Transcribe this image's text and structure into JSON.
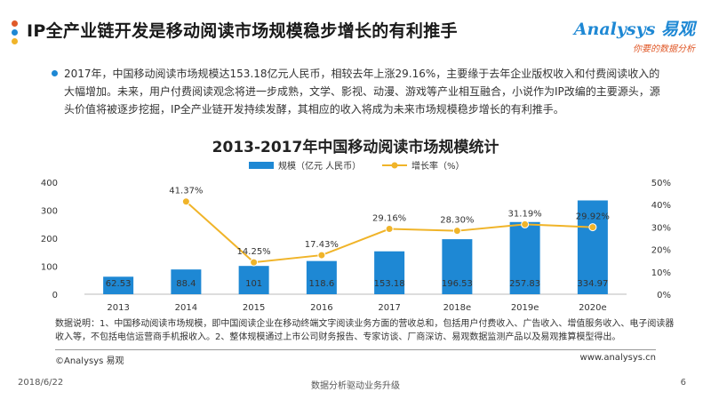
{
  "header": {
    "title": "IP全产业链开发是移动阅读市场规模稳步增长的有利推手",
    "logo_brand": "Analysys 易观",
    "logo_tagline": "你要的数据分析"
  },
  "paragraph": "2017年，中国移动阅读市场规模达153.18亿元人民币，相较去年上涨29.16%，主要缘于去年企业版权收入和付费阅读收入的大幅增加。未来，用户付费阅读观念将进一步成熟，文学、影视、动漫、游戏等产业相互融合，小说作为IP改编的主要源头，源头价值将被逐步挖掘，IP全产业链开发持续发酵，其相应的收入将成为未来市场规模稳步增长的有利推手。",
  "colors": {
    "bar": "#1e88d4",
    "line": "#f0b429",
    "bullet": "#1e88d4",
    "accent_orange": "#e05a2a"
  },
  "chart_data": {
    "type": "bar",
    "title": "2013-2017年中国移动阅读市场规模统计",
    "categories": [
      "2013",
      "2014",
      "2015",
      "2016",
      "2017",
      "2018e",
      "2019e",
      "2020e"
    ],
    "series": [
      {
        "name": "规模（亿元 人民币）",
        "type": "bar",
        "axis": "left",
        "values": [
          62.53,
          88.4,
          101,
          118.6,
          153.18,
          196.53,
          257.83,
          334.97
        ],
        "labels": [
          "62.53",
          "88.4",
          "101",
          "118.6",
          "153.18",
          "196.53",
          "257.83",
          "334.97"
        ]
      },
      {
        "name": "增长率（%）",
        "type": "line",
        "axis": "right",
        "values": [
          null,
          41.37,
          14.25,
          17.43,
          29.16,
          28.3,
          31.19,
          29.92
        ],
        "labels": [
          "",
          "41.37%",
          "14.25%",
          "17.43%",
          "29.16%",
          "28.30%",
          "31.19%",
          "29.92%"
        ]
      }
    ],
    "ylim_left": [
      0,
      400
    ],
    "yticks_left": [
      "0",
      "100",
      "200",
      "300",
      "400"
    ],
    "ylim_right": [
      0,
      50
    ],
    "yticks_right": [
      "0%",
      "10%",
      "20%",
      "30%",
      "40%",
      "50%"
    ],
    "legend_position": "top"
  },
  "note": "数据说明：1、中国移动阅读市场规模，即中国阅读企业在移动终端文字阅读业务方面的营收总和，包括用户付费收入、广告收入、增值服务收入、电子阅读器收入等，不包括电信运营商手机报收入。2、整体规模通过上市公司财务报告、专家访谈、厂商深访、易观数据监测产品以及易观推算模型得出。",
  "source_left": "©Analysys 易观",
  "source_right": "www.analysys.cn",
  "footer": {
    "date": "2018/6/22",
    "center": "数据分析驱动业务升级",
    "page": "6"
  }
}
